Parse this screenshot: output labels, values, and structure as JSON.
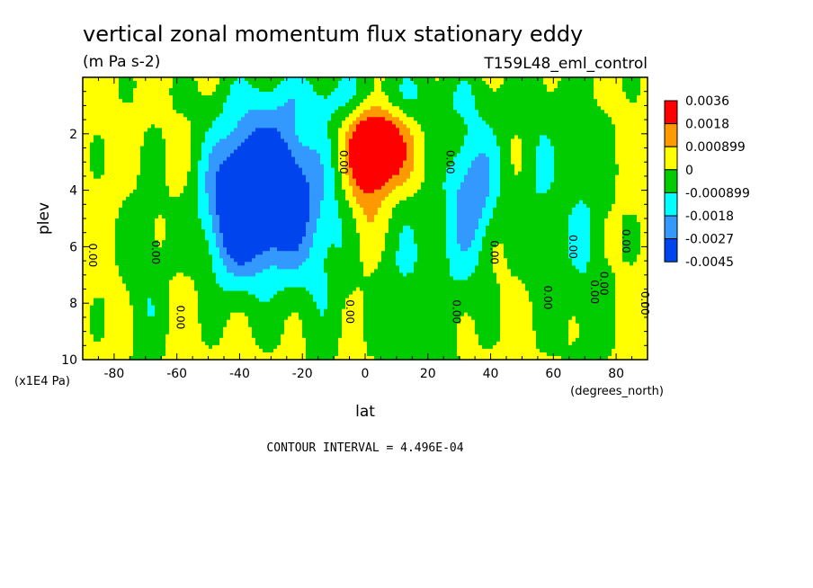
{
  "chart_data": {
    "type": "heatmap",
    "title": "vertical zonal momentum flux stationary eddy",
    "units": "(m Pa s-2)",
    "dataset": "T159L48_eml_control",
    "xlabel": "lat",
    "xunits": "(degrees_north)",
    "ylabel": "plev",
    "yunits": "(x1E4 Pa)",
    "contour_interval_text": "CONTOUR INTERVAL = 4.496E-04",
    "xlim": [
      -90,
      90
    ],
    "ylim": [
      10,
      0
    ],
    "xticks": [
      -80,
      -60,
      -40,
      -20,
      0,
      20,
      40,
      60,
      80
    ],
    "xtick_labels": [
      "-80",
      "-60",
      "-40",
      "-20",
      "0",
      "20",
      "40",
      "60",
      "80"
    ],
    "yticks": [
      2,
      4,
      6,
      8,
      10
    ],
    "ytick_labels": [
      "2",
      "4",
      "6",
      "8",
      "10"
    ],
    "levels": [
      -0.0045,
      -0.0027,
      -0.0018,
      -0.000899,
      0,
      0.000899,
      0.0018,
      0.0036
    ],
    "colorbar": {
      "labels": [
        "0.0036",
        "0.0018",
        "0.000899",
        "0",
        "-0.000899",
        "-0.0018",
        "-0.0027",
        "-0.0045"
      ],
      "colors": [
        "#ff0000",
        "#ff9900",
        "#ffff00",
        "#00cc00",
        "#00ffff",
        "#3399ff",
        "#0044ee"
      ]
    },
    "contour_label_text": "0.00",
    "fields": {
      "background": 0.0003,
      "features": [
        {
          "lat": -32,
          "plev": 4.0,
          "value": -0.0052,
          "sigma_lat": 11,
          "sigma_plev": 1.8
        },
        {
          "lat": -42,
          "plev": 5.2,
          "value": -0.0018,
          "sigma_lat": 7,
          "sigma_plev": 1.9
        },
        {
          "lat": 35,
          "plev": 3.8,
          "value": -0.0024,
          "sigma_lat": 6,
          "sigma_plev": 1.6
        },
        {
          "lat": 30,
          "plev": 6.5,
          "value": -0.001,
          "sigma_lat": 6,
          "sigma_plev": 2.2
        },
        {
          "lat": 4,
          "plev": 2.5,
          "value": 0.0042,
          "sigma_lat": 6,
          "sigma_plev": 1.0
        },
        {
          "lat": 0,
          "plev": 4.2,
          "value": 0.0011,
          "sigma_lat": 4,
          "sigma_plev": 2.0
        },
        {
          "lat": -15,
          "plev": 6.0,
          "value": -0.0011,
          "sigma_lat": 10,
          "sigma_plev": 2.5
        },
        {
          "lat": 12,
          "plev": 7.0,
          "value": -0.0011,
          "sigma_lat": 8,
          "sigma_plev": 2.2
        },
        {
          "lat": 70,
          "plev": 5.5,
          "value": -0.0012,
          "sigma_lat": 6,
          "sigma_plev": 3.5
        },
        {
          "lat": -70,
          "plev": 7.0,
          "value": -0.001,
          "sigma_lat": 5,
          "sigma_plev": 2.5
        },
        {
          "lat": 55,
          "plev": 4.0,
          "value": -0.0011,
          "sigma_lat": 5,
          "sigma_plev": 3.0
        },
        {
          "lat": 0,
          "plev": 0.7,
          "value": -0.0013,
          "sigma_lat": 30,
          "sigma_plev": 0.8
        }
      ]
    }
  }
}
